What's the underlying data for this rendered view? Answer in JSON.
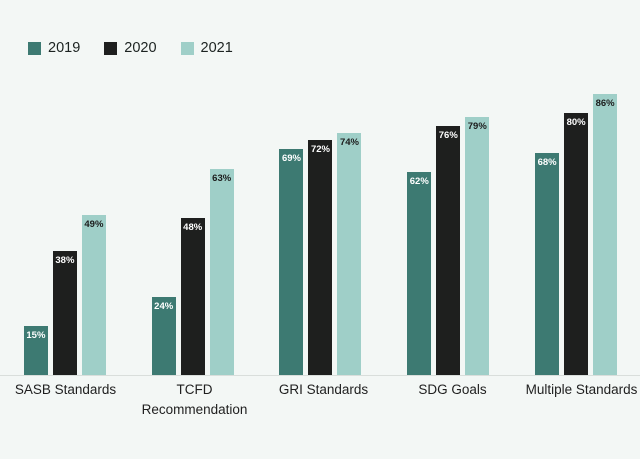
{
  "chart_data": {
    "type": "bar",
    "title": "",
    "xlabel": "",
    "ylabel": "",
    "value_suffix": "%",
    "ylim": [
      0,
      100
    ],
    "grid": false,
    "legend_position": "top-left",
    "background_color": "#f3f7f5",
    "axis_line_color": "#d9dedb",
    "categories": [
      "SASB Standards",
      "TCFD Recommendation",
      "GRI Standards",
      "SDG Goals",
      "Multiple Standards"
    ],
    "series": [
      {
        "name": "2019",
        "color": "#3d7a72",
        "label_color": "#ffffff",
        "values": [
          15,
          24,
          69,
          62,
          68
        ]
      },
      {
        "name": "2020",
        "color": "#1e1f1e",
        "label_color": "#ffffff",
        "values": [
          38,
          48,
          72,
          76,
          80
        ]
      },
      {
        "name": "2021",
        "color": "#9fcfc8",
        "label_color": "#1c1c1c",
        "values": [
          49,
          63,
          74,
          79,
          86
        ]
      }
    ]
  }
}
